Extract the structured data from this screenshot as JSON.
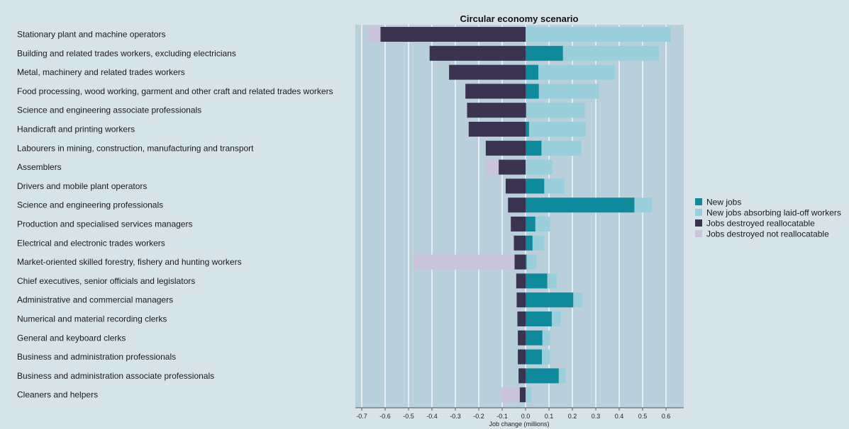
{
  "chart_data": {
    "type": "bar",
    "orientation": "horizontal",
    "stacked": true,
    "title": "Circular economy scenario",
    "xlabel": "Job change (millions)",
    "ylabel": "",
    "xlim": [
      -0.7,
      0.6
    ],
    "xticks": [
      -0.7,
      -0.6,
      -0.5,
      -0.4,
      -0.3,
      -0.2,
      -0.1,
      0.0,
      0.1,
      0.2,
      0.3,
      0.4,
      0.5,
      0.6
    ],
    "xtick_labels": [
      "-0.7",
      "-0.6",
      "-0.5",
      "-0.4",
      "-0.3",
      "-0.2",
      "-0.1",
      "0.0",
      "0.1",
      "0.2",
      "0.3",
      "0.4",
      "0.5",
      "0.6"
    ],
    "grid": true,
    "legend_position": "right",
    "categories": [
      "Stationary plant and machine operators",
      "Building and related trades workers, excluding electricians",
      "Metal, machinery and related trades workers",
      "Food processing, wood working, garment and other craft and related trades workers",
      "Science and engineering associate professionals",
      "Handicraft and printing workers",
      "Labourers in mining, construction, manufacturing and transport",
      "Assemblers",
      "Drivers and mobile plant operators",
      "Science and engineering professionals",
      "Production and specialised services managers",
      "Electrical and electronic trades workers",
      "Market-oriented skilled forestry, fishery and hunting workers",
      "Chief executives, senior officials and legislators",
      "Administrative and commercial managers",
      "Numerical and material recording clerks",
      "General and keyboard clerks",
      "Business and administration professionals",
      "Business and administration associate professionals",
      "Cleaners and helpers"
    ],
    "series": [
      {
        "name": "New jobs",
        "color": "#0e8a9c",
        "values": [
          0.0,
          0.16,
          0.055,
          0.057,
          0.003,
          0.015,
          0.068,
          0.0,
          0.08,
          0.465,
          0.042,
          0.03,
          0.005,
          0.093,
          0.204,
          0.112,
          0.072,
          0.07,
          0.142,
          0.0
        ]
      },
      {
        "name": "New jobs absorbing laid-off workers",
        "color": "#98cfdb",
        "values": [
          0.62,
          0.41,
          0.327,
          0.257,
          0.25,
          0.243,
          0.17,
          0.115,
          0.085,
          0.075,
          0.063,
          0.05,
          0.042,
          0.04,
          0.038,
          0.038,
          0.033,
          0.033,
          0.03,
          0.025
        ]
      },
      {
        "name": "Jobs destroyed reallocatable",
        "color": "#3a3450",
        "values": [
          -0.62,
          -0.41,
          -0.327,
          -0.257,
          -0.25,
          -0.243,
          -0.17,
          -0.115,
          -0.085,
          -0.075,
          -0.063,
          -0.05,
          -0.047,
          -0.04,
          -0.038,
          -0.035,
          -0.033,
          -0.033,
          -0.03,
          -0.025
        ]
      },
      {
        "name": "Jobs destroyed not reallocatable",
        "color": "#c9c4d9",
        "values": [
          -0.05,
          0.0,
          0.0,
          0.0,
          0.0,
          0.0,
          0.0,
          -0.055,
          0.0,
          0.0,
          0.0,
          0.0,
          -0.43,
          0.0,
          0.0,
          0.0,
          0.0,
          0.0,
          0.0,
          -0.08
        ]
      }
    ]
  }
}
